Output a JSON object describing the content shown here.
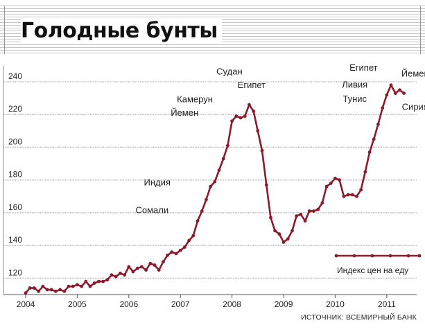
{
  "title": "Голодные бунты",
  "source": "ИСТОЧНИК: ВСЕМИРНЫЙ БАНК",
  "colors": {
    "line": "#8b1a2b",
    "grid": "#b5b5b5"
  },
  "chart_data": {
    "type": "line",
    "title": "Голодные бунты",
    "xlabel": "",
    "ylabel": "",
    "ylim": [
      110,
      250
    ],
    "xlim": [
      2004.0,
      2011.58
    ],
    "grid": true,
    "x_ticks": [
      "2004",
      "2005",
      "2006",
      "2007",
      "2008",
      "2009",
      "2010",
      "2011"
    ],
    "y_ticks": [
      "120",
      "140",
      "160",
      "180",
      "200",
      "220",
      "240"
    ],
    "series": [
      {
        "name": "Индекс цен на еду",
        "x": [
          2004.0,
          2004.083,
          2004.167,
          2004.25,
          2004.333,
          2004.417,
          2004.5,
          2004.583,
          2004.667,
          2004.75,
          2004.833,
          2004.917,
          2005.0,
          2005.083,
          2005.167,
          2005.25,
          2005.333,
          2005.417,
          2005.5,
          2005.583,
          2005.667,
          2005.75,
          2005.833,
          2005.917,
          2006.0,
          2006.083,
          2006.167,
          2006.25,
          2006.333,
          2006.417,
          2006.5,
          2006.583,
          2006.667,
          2006.75,
          2006.833,
          2006.917,
          2007.0,
          2007.083,
          2007.167,
          2007.25,
          2007.333,
          2007.417,
          2007.5,
          2007.583,
          2007.667,
          2007.75,
          2007.833,
          2007.917,
          2008.0,
          2008.083,
          2008.167,
          2008.25,
          2008.333,
          2008.417,
          2008.5,
          2008.583,
          2008.667,
          2008.75,
          2008.833,
          2008.917,
          2009.0,
          2009.083,
          2009.167,
          2009.25,
          2009.333,
          2009.417,
          2009.5,
          2009.583,
          2009.667,
          2009.75,
          2009.833,
          2009.917,
          2010.0,
          2010.083,
          2010.167,
          2010.25,
          2010.333,
          2010.417,
          2010.5,
          2010.583,
          2010.667,
          2010.75,
          2010.833,
          2010.917,
          2011.0,
          2011.083,
          2011.167,
          2011.25,
          2011.333
        ],
        "y": [
          111,
          114,
          114,
          112,
          115,
          113,
          113,
          112,
          113,
          112,
          115,
          115,
          116,
          115,
          118,
          115,
          117,
          118,
          118,
          119,
          122,
          121,
          123,
          122,
          127,
          124,
          126,
          127,
          125,
          129,
          128,
          125,
          130,
          134,
          136,
          135,
          137,
          139,
          143,
          146,
          155,
          161,
          168,
          176,
          179,
          186,
          193,
          201,
          216,
          219,
          218,
          219,
          226,
          222,
          210,
          198,
          177,
          157,
          149,
          147,
          142,
          144,
          149,
          158,
          159,
          155,
          161,
          161,
          162,
          166,
          176,
          178,
          181,
          180,
          170,
          171,
          171,
          170,
          174,
          185,
          197,
          205,
          214,
          224,
          232,
          238,
          233,
          235,
          233
        ]
      }
    ],
    "annotations": [
      {
        "text": "Судан",
        "x": 2007.95,
        "y": 244.5
      },
      {
        "text": "Египет",
        "x": 2008.38,
        "y": 236.2
      },
      {
        "text": "Камерун",
        "x": 2007.28,
        "y": 227.5
      },
      {
        "text": "Йемен",
        "x": 2007.08,
        "y": 219.3
      },
      {
        "text": "Индия",
        "x": 2006.55,
        "y": 176.6
      },
      {
        "text": "Сомали",
        "x": 2006.45,
        "y": 159.8
      },
      {
        "text": "Египет",
        "x": 2010.55,
        "y": 246.7
      },
      {
        "text": "Йемен",
        "x": 2011.55,
        "y": 243.2
      },
      {
        "text": "Ливия",
        "x": 2010.38,
        "y": 236.5
      },
      {
        "text": "Тунис",
        "x": 2010.38,
        "y": 227.7
      },
      {
        "text": "Сирия",
        "x": 2011.55,
        "y": 222.9
      }
    ],
    "legend_position": "bottom-right"
  }
}
